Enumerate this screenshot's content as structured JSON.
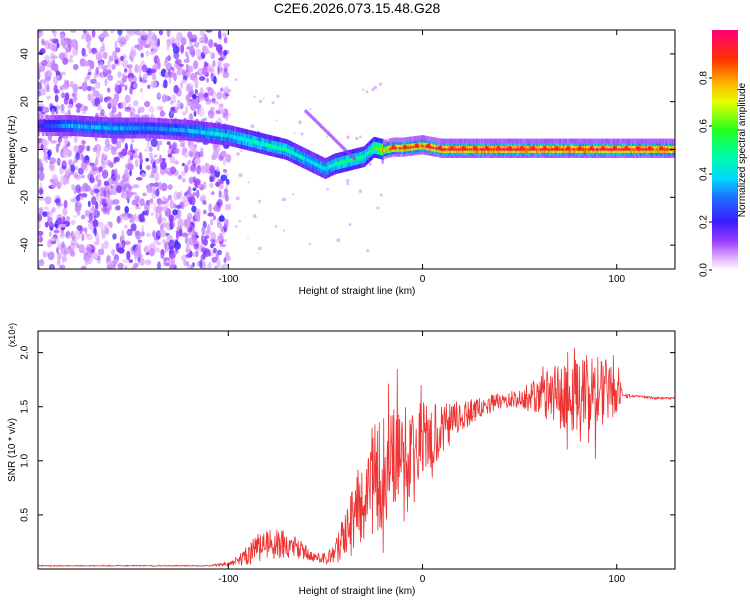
{
  "title": "C2E6.2026.073.15.48.G28",
  "chart_data": [
    {
      "type": "heatmap",
      "xlabel": "Height of straight line (km)",
      "ylabel": "Frequency (Hz)",
      "xlim": [
        -198,
        130
      ],
      "ylim": [
        -50,
        50
      ],
      "xticks": [
        -100,
        0,
        100
      ],
      "yticks": [
        -40,
        -20,
        0,
        20,
        40
      ],
      "xtick_labels": [
        "-100",
        "0",
        "100"
      ],
      "ytick_labels": [
        "-40",
        "-20",
        "0",
        "20",
        "40"
      ],
      "colorbar": {
        "label": "Normalized spectral amplitude",
        "range": [
          0,
          1
        ],
        "ticks": [
          0.0,
          0.2,
          0.4,
          0.6,
          0.8
        ],
        "tick_labels": [
          "0.0",
          "0.2",
          "0.4",
          "0.6",
          "0.8"
        ]
      },
      "ridge": {
        "x": [
          -198,
          -180,
          -160,
          -140,
          -120,
          -110,
          -100,
          -90,
          -80,
          -70,
          -60,
          -50,
          -45,
          -40,
          -35,
          -30,
          -25,
          -20,
          -15,
          -10,
          0,
          10,
          20,
          40,
          60,
          80,
          100,
          130
        ],
        "y": [
          10,
          10,
          9,
          9,
          8,
          7,
          6,
          4,
          2,
          0,
          -4,
          -8,
          -6,
          -5,
          -4,
          -3,
          1,
          0,
          1,
          1,
          2,
          0.5,
          0.5,
          0.5,
          0.5,
          0.5,
          0.5,
          0.5
        ],
        "amplitude": [
          0.2,
          0.35,
          0.35,
          0.3,
          0.35,
          0.4,
          0.4,
          0.45,
          0.45,
          0.45,
          0.4,
          0.4,
          0.45,
          0.5,
          0.5,
          0.45,
          0.5,
          0.75,
          0.85,
          0.9,
          0.9,
          0.95,
          0.95,
          0.95,
          0.95,
          0.95,
          0.95,
          0.9
        ]
      },
      "noise_region_xlim": [
        -198,
        -100
      ]
    },
    {
      "type": "line",
      "xlabel": "Height of straight line (km)",
      "ylabel": "SNR (10 * v/v)",
      "y_multiplier": "(x10⁴)",
      "xlim": [
        -198,
        130
      ],
      "ylim": [
        0,
        2.2
      ],
      "xticks": [
        -100,
        0,
        100
      ],
      "yticks": [
        0.5,
        1.0,
        1.5,
        2.0
      ],
      "xtick_labels": [
        "-100",
        "0",
        "100"
      ],
      "ytick_labels": [
        "0.5",
        "1.0",
        "1.5",
        "2.0"
      ],
      "color": "#ee3333",
      "envelope": {
        "x": [
          -198,
          -110,
          -100,
          -95,
          -90,
          -85,
          -80,
          -75,
          -70,
          -65,
          -60,
          -55,
          -50,
          -45,
          -40,
          -35,
          -30,
          -25,
          -20,
          -15,
          -10,
          -5,
          0,
          10,
          20,
          30,
          40,
          50,
          60,
          70,
          80,
          90,
          95,
          100,
          103,
          110,
          120,
          130
        ],
        "y": [
          0.03,
          0.03,
          0.05,
          0.08,
          0.12,
          0.18,
          0.22,
          0.25,
          0.22,
          0.2,
          0.15,
          0.1,
          0.1,
          0.15,
          0.3,
          0.5,
          0.65,
          0.8,
          0.9,
          1.0,
          1.05,
          1.1,
          1.2,
          1.3,
          1.4,
          1.5,
          1.55,
          1.58,
          1.6,
          1.6,
          1.62,
          1.65,
          1.65,
          1.7,
          1.6,
          1.6,
          1.58,
          1.58
        ],
        "jitter": [
          0.005,
          0.005,
          0.02,
          0.05,
          0.1,
          0.15,
          0.15,
          0.15,
          0.12,
          0.1,
          0.08,
          0.05,
          0.05,
          0.1,
          0.25,
          0.35,
          0.5,
          0.55,
          0.55,
          0.5,
          0.45,
          0.4,
          0.35,
          0.25,
          0.15,
          0.1,
          0.08,
          0.08,
          0.2,
          0.3,
          0.35,
          0.35,
          0.3,
          0.3,
          0.02,
          0.01,
          0.01,
          0.01
        ]
      }
    }
  ]
}
